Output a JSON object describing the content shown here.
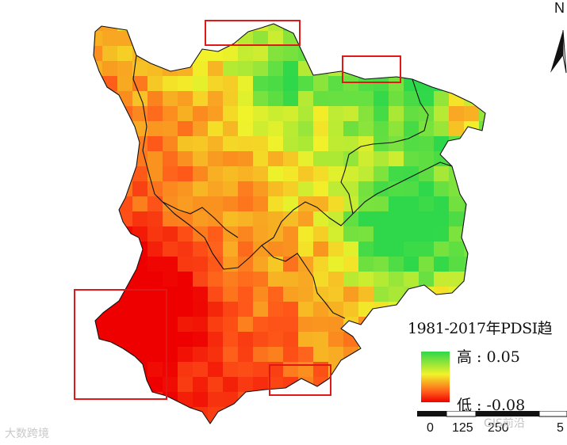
{
  "legend": {
    "title": "1981-2017年PDSI趋",
    "high_label": "高 : 0.05",
    "low_label": "低 : -0.08",
    "high_value": 0.05,
    "low_value": -0.08,
    "ramp_colors": [
      "#2ed84a",
      "#f2f22a",
      "#ff5a1a",
      "#ee0000"
    ]
  },
  "north_arrow": {
    "label": "N"
  },
  "scale_bar": {
    "ticks": [
      "0",
      "125",
      "250",
      "5"
    ]
  },
  "watermarks": {
    "left": "大数跨境",
    "right": "GIS前沿"
  },
  "colors": {
    "boundary": "#111111",
    "highlight_box": "#e01818",
    "trend_high": "#2ed84a",
    "trend_mid": "#f2f22a",
    "trend_low": "#ee0000"
  }
}
